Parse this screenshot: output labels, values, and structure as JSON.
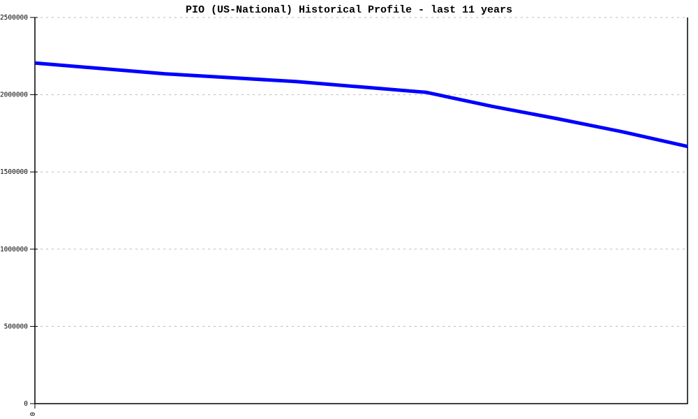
{
  "chart_data": {
    "type": "line",
    "title": "PIO (US-National) Historical Profile - last 11 years",
    "x": [
      0,
      1,
      2,
      3,
      4,
      5,
      6,
      7,
      8,
      9,
      10
    ],
    "series": [
      {
        "name": "PIO (US-National)",
        "values": [
          2205000,
          2170000,
          2135000,
          2110000,
          2085000,
          2050000,
          2015000,
          1925000,
          1845000,
          1760000,
          1665000
        ]
      }
    ],
    "xlabel": "",
    "ylabel": "",
    "xlim": [
      0,
      10
    ],
    "ylim": [
      0,
      2500000
    ],
    "yticks": [
      0,
      500000,
      1000000,
      1500000,
      2000000,
      2500000
    ],
    "ytick_labels": [
      "0",
      "500000",
      "1000000",
      "1500000",
      "2000000",
      "2500000"
    ],
    "xticks": [
      0
    ],
    "xtick_labels": [
      "0"
    ],
    "grid": true,
    "legend": false,
    "colors": {
      "line": "#0000ff",
      "grid": "#b9b9b9",
      "axis": "#000000",
      "background": "#ffffff"
    },
    "line_width": 5
  }
}
